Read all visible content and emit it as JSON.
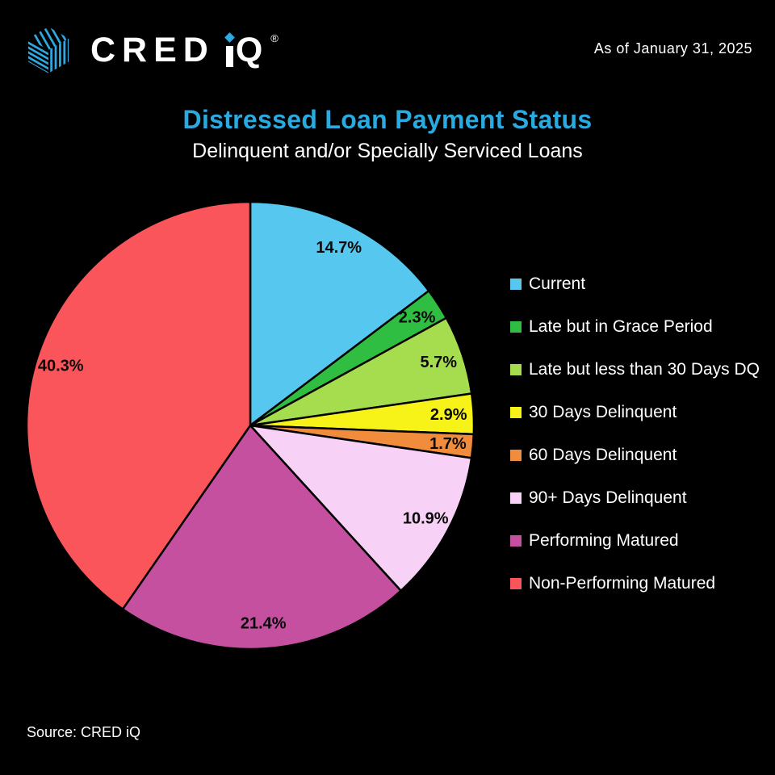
{
  "header": {
    "logo_cred": "CRED",
    "logo_q": "Q",
    "logo_registered": "®",
    "as_of": "As of January 31, 2025"
  },
  "title": "Distressed Loan Payment Status",
  "subtitle": "Delinquent and/or Specially Serviced Loans",
  "source": "Source: CRED iQ",
  "colors": {
    "background": "#000000",
    "title": "#29ABE2",
    "text": "#FFFFFF",
    "slice_border": "#000000",
    "slice_label": "#0A0A0A",
    "logo_blue": "#2FA9E1"
  },
  "chart_data": {
    "type": "pie",
    "title": "Distressed Loan Payment Status",
    "subtitle": "Delinquent and/or Specially Serviced Loans",
    "categories": [
      "Current",
      "Late but in Grace Period",
      "Late but less than 30 Days DQ",
      "30 Days Delinquent",
      "60 Days Delinquent",
      "90+ Days Delinquent",
      "Performing Matured",
      "Non-Performing Matured"
    ],
    "values": [
      14.7,
      2.3,
      5.7,
      2.9,
      1.7,
      10.9,
      21.4,
      40.3
    ],
    "labels": [
      "14.7%",
      "2.3%",
      "5.7%",
      "2.9%",
      "1.7%",
      "10.9%",
      "21.4%",
      "40.3%"
    ],
    "colors": [
      "#56C7EE",
      "#2FBE41",
      "#A5DD4E",
      "#F7F218",
      "#F18C3D",
      "#F8D2F6",
      "#C4509F",
      "#FA555A"
    ],
    "start_angle_deg": 0,
    "direction": "clockwise",
    "legend_position": "right",
    "as_of": "As of January 31, 2025",
    "source": "Source: CRED iQ"
  }
}
